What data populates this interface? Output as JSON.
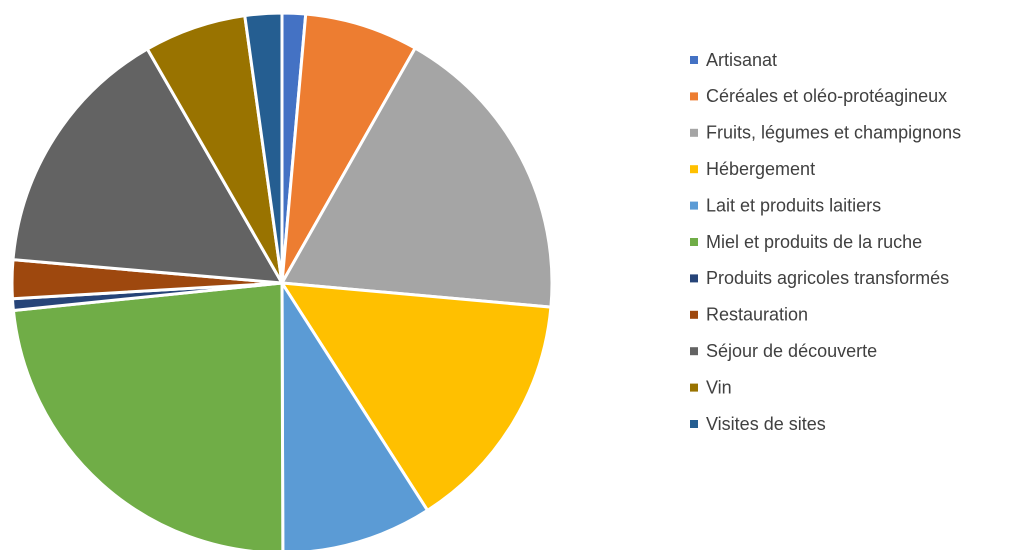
{
  "chart_data": {
    "type": "pie",
    "categories": [
      "Artisanat",
      "Céréales et oléo-protéagineux",
      "Fruits, légumes et champignons",
      "Hébergement",
      "Lait et produits laitiers",
      "Miel et produits de la ruche",
      "Produits agricoles transformés",
      "Restauration",
      "Séjour de découverte",
      "Vin",
      "Visites de sites"
    ],
    "values": [
      1.4,
      6.8,
      18.2,
      14.5,
      9.0,
      23.4,
      0.7,
      2.3,
      15.3,
      6.1,
      2.2
    ],
    "colors": [
      "#4472c4",
      "#ed7d31",
      "#a5a5a5",
      "#ffc000",
      "#5b9bd5",
      "#70ad47",
      "#264478",
      "#9e480e",
      "#636363",
      "#997300",
      "#255e91"
    ],
    "legend": "right"
  }
}
